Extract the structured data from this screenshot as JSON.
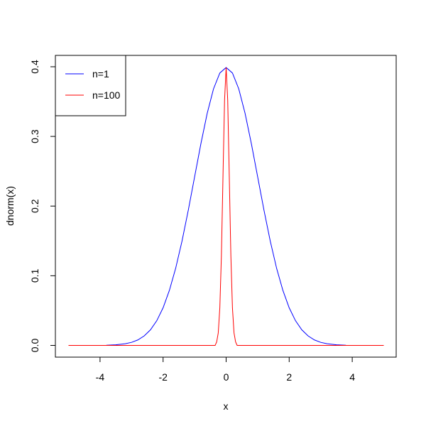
{
  "chart_data": {
    "type": "line",
    "title": "",
    "xlabel": "x",
    "ylabel": "dnorm(x)",
    "xlim": [
      -5,
      5
    ],
    "ylim": [
      0,
      0.4
    ],
    "x_ticks": [
      -4,
      -2,
      0,
      2,
      4
    ],
    "y_ticks": [
      0.0,
      0.1,
      0.2,
      0.3,
      0.4
    ],
    "x_tick_labels": [
      "-4",
      "-2",
      "0",
      "2",
      "4"
    ],
    "y_tick_labels": [
      "0.0",
      "0.1",
      "0.2",
      "0.3",
      "0.4"
    ],
    "grid": false,
    "legend": {
      "position": "top-left",
      "entries": [
        {
          "label": "n=1",
          "color": "#0000ff"
        },
        {
          "label": "n=100",
          "color": "#ff0000"
        }
      ]
    },
    "series": [
      {
        "name": "n=1",
        "color": "#0000ff",
        "x": [
          -3.8,
          -3.5,
          -3.2,
          -3.0,
          -2.8,
          -2.6,
          -2.4,
          -2.2,
          -2.0,
          -1.8,
          -1.6,
          -1.4,
          -1.2,
          -1.0,
          -0.8,
          -0.6,
          -0.4,
          -0.2,
          0.0,
          0.2,
          0.4,
          0.6,
          0.8,
          1.0,
          1.2,
          1.4,
          1.6,
          1.8,
          2.0,
          2.2,
          2.4,
          2.6,
          2.8,
          3.0,
          3.2,
          3.5,
          3.8
        ],
        "y": [
          0.0003,
          0.0009,
          0.0024,
          0.0044,
          0.0079,
          0.0136,
          0.0224,
          0.0355,
          0.054,
          0.079,
          0.1109,
          0.1497,
          0.1942,
          0.242,
          0.2897,
          0.3332,
          0.3683,
          0.391,
          0.3989,
          0.391,
          0.3683,
          0.3332,
          0.2897,
          0.242,
          0.1942,
          0.1497,
          0.1109,
          0.079,
          0.054,
          0.0355,
          0.0224,
          0.0136,
          0.0079,
          0.0044,
          0.0024,
          0.0009,
          0.0003
        ]
      },
      {
        "name": "n=100",
        "color": "#ff0000",
        "x": [
          -5.0,
          -1.0,
          -0.4,
          -0.35,
          -0.3,
          -0.25,
          -0.2,
          -0.15,
          -0.1,
          -0.05,
          0.0,
          0.05,
          0.1,
          0.15,
          0.2,
          0.25,
          0.3,
          0.35,
          0.4,
          1.0,
          5.0
        ],
        "y": [
          0.0,
          0.0,
          0.0,
          0.0,
          0.005,
          0.018,
          0.054,
          0.129,
          0.242,
          0.352,
          0.3989,
          0.352,
          0.242,
          0.129,
          0.054,
          0.018,
          0.005,
          0.0,
          0.0,
          0.0,
          0.0
        ]
      }
    ]
  }
}
